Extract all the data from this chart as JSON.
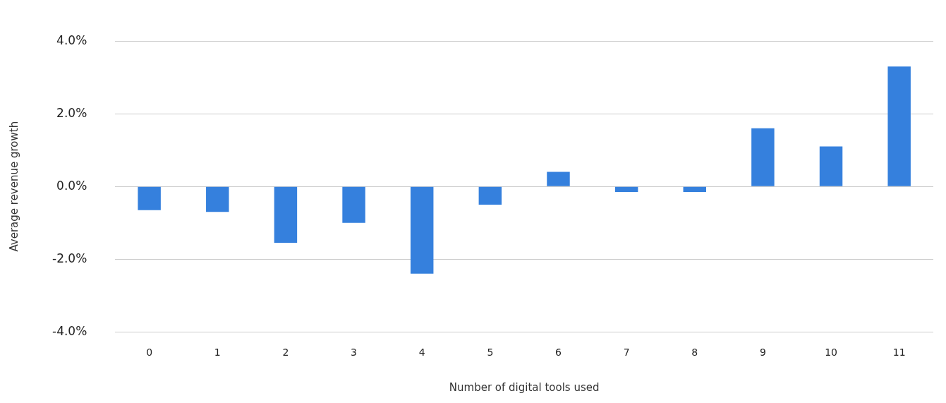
{
  "chart_data": {
    "type": "bar",
    "xlabel": "Number of digital tools used",
    "ylabel": "Average revenue growth",
    "categories": [
      "0",
      "1",
      "2",
      "3",
      "4",
      "5",
      "6",
      "7",
      "8",
      "9",
      "10",
      "11"
    ],
    "values": [
      -0.65,
      -0.7,
      -1.55,
      -1.0,
      -2.4,
      -0.5,
      0.4,
      -0.15,
      -0.15,
      1.6,
      1.1,
      3.3
    ],
    "color": "#3580dd",
    "ylim": [
      -4,
      4
    ],
    "yticks": [
      {
        "value": -4,
        "label": "-4.0%"
      },
      {
        "value": -2,
        "label": "-2.0%"
      },
      {
        "value": 0,
        "label": "0.0%"
      },
      {
        "value": 2,
        "label": "2.0%"
      },
      {
        "value": 4,
        "label": "4.0%"
      }
    ],
    "grid": "y",
    "legend": false
  }
}
